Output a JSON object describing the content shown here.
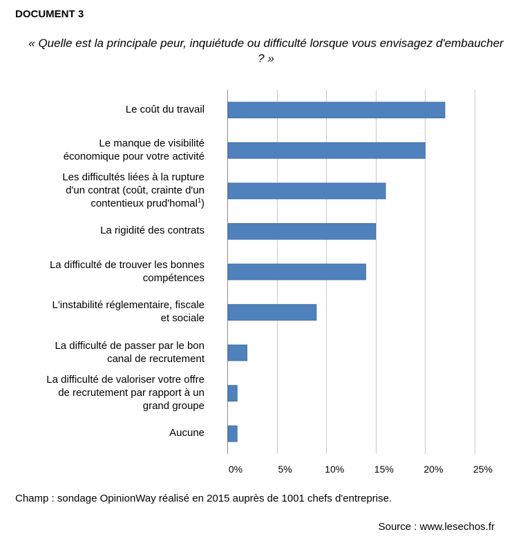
{
  "header": {
    "doc_label": "DOCUMENT 3"
  },
  "question": "« Quelle est la principale peur, inquiétude ou difficulté lorsque vous envisagez d'embaucher ? »",
  "chart_data": {
    "type": "bar",
    "orientation": "horizontal",
    "categories": [
      "Le coût du travail",
      "Le manque de visibilité économique pour votre activité",
      "Les difficultés liées à la rupture d'un contrat (coût, crainte d'un contentieux prud'homal¹)",
      "La rigidité des contrats",
      "La difficulté de trouver les bonnes compétences",
      "L'instabilité réglementaire, fiscale et sociale",
      "La difficulté de passer par le bon canal de recrutement",
      "La difficulté de valoriser votre offre de recrutement par rapport à un grand groupe",
      "Aucune"
    ],
    "category_lines": [
      [
        "Le coût du travail"
      ],
      [
        "Le manque de visibilité",
        "économique pour votre activité"
      ],
      [
        "Les difficultés liées à la rupture",
        "d'un contrat (coût, crainte d'un",
        "contentieux prud'homal¹)"
      ],
      [
        "La rigidité des contrats"
      ],
      [
        "La difficulté de trouver les bonnes",
        "compétences"
      ],
      [
        "L'instabilité réglementaire, fiscale",
        "et sociale"
      ],
      [
        "La difficulté de passer par le bon",
        "canal de recrutement"
      ],
      [
        "La difficulté de valoriser votre offre",
        "de recrutement par rapport à un",
        "grand groupe"
      ],
      [
        "Aucune"
      ]
    ],
    "values": [
      22,
      20,
      16,
      15,
      14,
      9,
      2,
      1,
      1
    ],
    "xlim": [
      0,
      25
    ],
    "xticks": [
      "0%",
      "5%",
      "10%",
      "15%",
      "20%",
      "25%"
    ],
    "xtick_values": [
      0,
      5,
      10,
      15,
      20,
      25
    ],
    "grid": true,
    "bar_color": "#4f81bd",
    "bar_edge_color": "#3a6aa4"
  },
  "footnote": "Champ : sondage OpinionWay réalisé en 2015 auprès de 1001 chefs d'entreprise.",
  "source": "Source : www.lesechos.fr"
}
